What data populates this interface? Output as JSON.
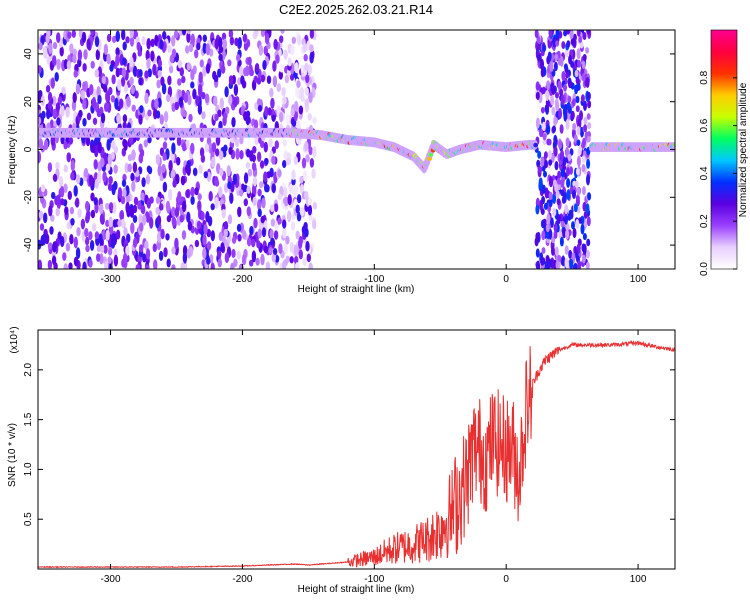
{
  "title": "C2E2.2025.262.03.21.R14",
  "chart_data": [
    {
      "type": "heatmap",
      "xlabel": "Height of straight line (km)",
      "ylabel": "Frequency (Hz)",
      "xlim": [
        -355,
        128
      ],
      "ylim": [
        -50,
        50
      ],
      "xticks": [
        -300,
        -200,
        -100,
        0,
        100
      ],
      "xtick_labels": [
        "-300",
        "-200",
        "-100",
        "0",
        "100"
      ],
      "yticks": [
        -40,
        -20,
        0,
        20,
        40
      ],
      "ytick_labels": [
        "-40",
        "-20",
        "0",
        "20",
        "40"
      ],
      "colorbar": {
        "label": "Normalized spectral amplitude",
        "range": [
          0,
          1
        ],
        "ticks": [
          0.0,
          0.2,
          0.4,
          0.6,
          0.8
        ],
        "tick_labels": [
          "0.0",
          "0.2",
          "0.4",
          "0.6",
          "0.8"
        ],
        "colormap": [
          "#ffffff",
          "#e8d0ff",
          "#9a40ff",
          "#5a00e0",
          "#0030ff",
          "#00c8ff",
          "#00ff60",
          "#c8ff00",
          "#ffcc00",
          "#ff3000",
          "#ff0040",
          "#ff0090"
        ]
      },
      "doppler_track": [
        {
          "x": -355,
          "y": 7
        },
        {
          "x": -300,
          "y": 7
        },
        {
          "x": -250,
          "y": 7
        },
        {
          "x": -200,
          "y": 7
        },
        {
          "x": -165,
          "y": 7
        },
        {
          "x": -140,
          "y": 6
        },
        {
          "x": -120,
          "y": 4
        },
        {
          "x": -100,
          "y": 3
        },
        {
          "x": -85,
          "y": 1
        },
        {
          "x": -70,
          "y": -3
        },
        {
          "x": -62,
          "y": -8
        },
        {
          "x": -55,
          "y": 2
        },
        {
          "x": -45,
          "y": -2
        },
        {
          "x": -35,
          "y": 0
        },
        {
          "x": -20,
          "y": 2
        },
        {
          "x": 0,
          "y": 1
        },
        {
          "x": 18,
          "y": 2
        },
        {
          "x": 65,
          "y": 1
        },
        {
          "x": 90,
          "y": 1
        },
        {
          "x": 128,
          "y": 1
        }
      ]
    },
    {
      "type": "line",
      "xlabel": "Height of straight line (km)",
      "ylabel": "SNR (10 * v/v)",
      "scale_label": "(x10⁴)",
      "xlim": [
        -355,
        128
      ],
      "ylim": [
        0,
        2.4
      ],
      "xticks": [
        -300,
        -200,
        -100,
        0,
        100
      ],
      "xtick_labels": [
        "-300",
        "-200",
        "-100",
        "0",
        "100"
      ],
      "yticks": [
        0.5,
        1.0,
        1.5,
        2.0
      ],
      "ytick_labels": [
        "0.5",
        "1.0",
        "1.5",
        "2.0"
      ],
      "series": [
        {
          "color": "#e83030",
          "x": [
            -355,
            -300,
            -250,
            -200,
            -160,
            -150,
            -120,
            -100,
            -90,
            -80,
            -70,
            -60,
            -50,
            -40,
            -30,
            -25,
            -20,
            -15,
            -10,
            -5,
            0,
            5,
            10,
            15,
            20,
            25,
            30,
            40,
            50,
            60,
            80,
            100,
            110,
            128
          ],
          "y": [
            0.02,
            0.02,
            0.02,
            0.03,
            0.05,
            0.04,
            0.07,
            0.12,
            0.18,
            0.22,
            0.25,
            0.3,
            0.4,
            0.6,
            0.9,
            1.2,
            1.2,
            1.1,
            1.3,
            1.25,
            1.2,
            1.2,
            0.95,
            1.6,
            1.85,
            2.0,
            2.1,
            2.2,
            2.25,
            2.25,
            2.25,
            2.27,
            2.24,
            2.2
          ]
        }
      ]
    }
  ]
}
